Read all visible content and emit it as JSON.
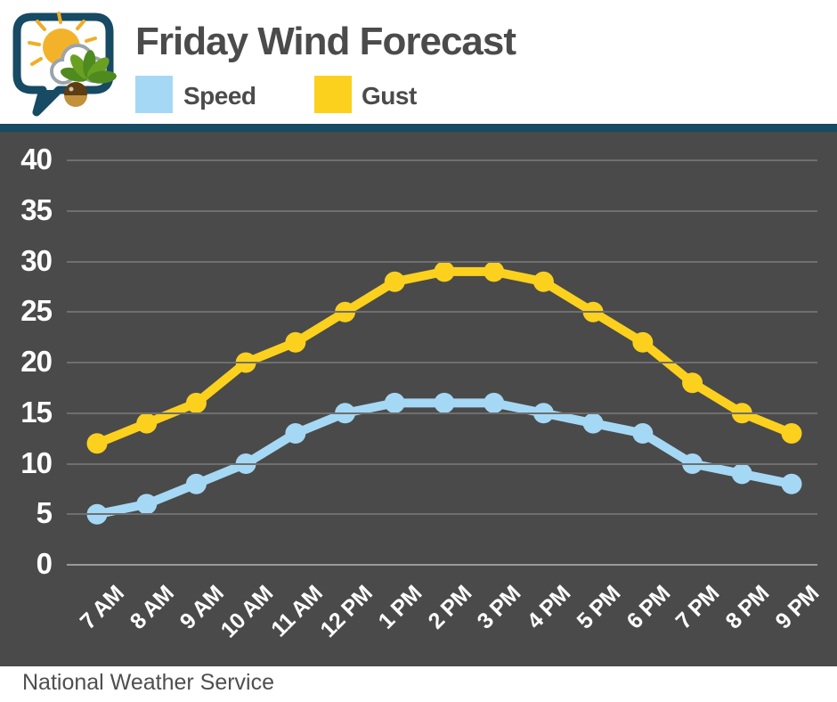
{
  "header": {
    "logo_icon": "sun-cloud-buckeye-speech-bubble"
  },
  "chart_data": {
    "type": "line",
    "title": "Friday Wind Forecast",
    "categories": [
      "7 AM",
      "8 AM",
      "9 AM",
      "10 AM",
      "11 AM",
      "12 PM",
      "1 PM",
      "2 PM",
      "3 PM",
      "4 PM",
      "5 PM",
      "6 PM",
      "7 PM",
      "8 PM",
      "9 PM"
    ],
    "series": [
      {
        "name": "Speed",
        "color": "#A5D8F5",
        "values": [
          5,
          6,
          8,
          10,
          13,
          15,
          16,
          16,
          16,
          15,
          14,
          13,
          10,
          9,
          8
        ]
      },
      {
        "name": "Gust",
        "color": "#FBD11E",
        "values": [
          12,
          14,
          16,
          20,
          22,
          25,
          28,
          29,
          29,
          28,
          25,
          22,
          18,
          15,
          13
        ]
      }
    ],
    "xlabel": "",
    "ylabel": "",
    "ylim": [
      0,
      40
    ],
    "yticks": [
      0,
      5,
      10,
      15,
      20,
      25,
      30,
      35,
      40
    ],
    "grid": true,
    "legend_position": "top"
  },
  "colors": {
    "chart_background": "#4A4A4A",
    "accent_bar": "#174A63",
    "grid_line": "#6F6F6F",
    "grid_line_zero": "#9A9A9A",
    "axis_text": "#FFFFFF",
    "header_text": "#4B4B4B"
  },
  "footer": {
    "source": "National Weather Service"
  }
}
